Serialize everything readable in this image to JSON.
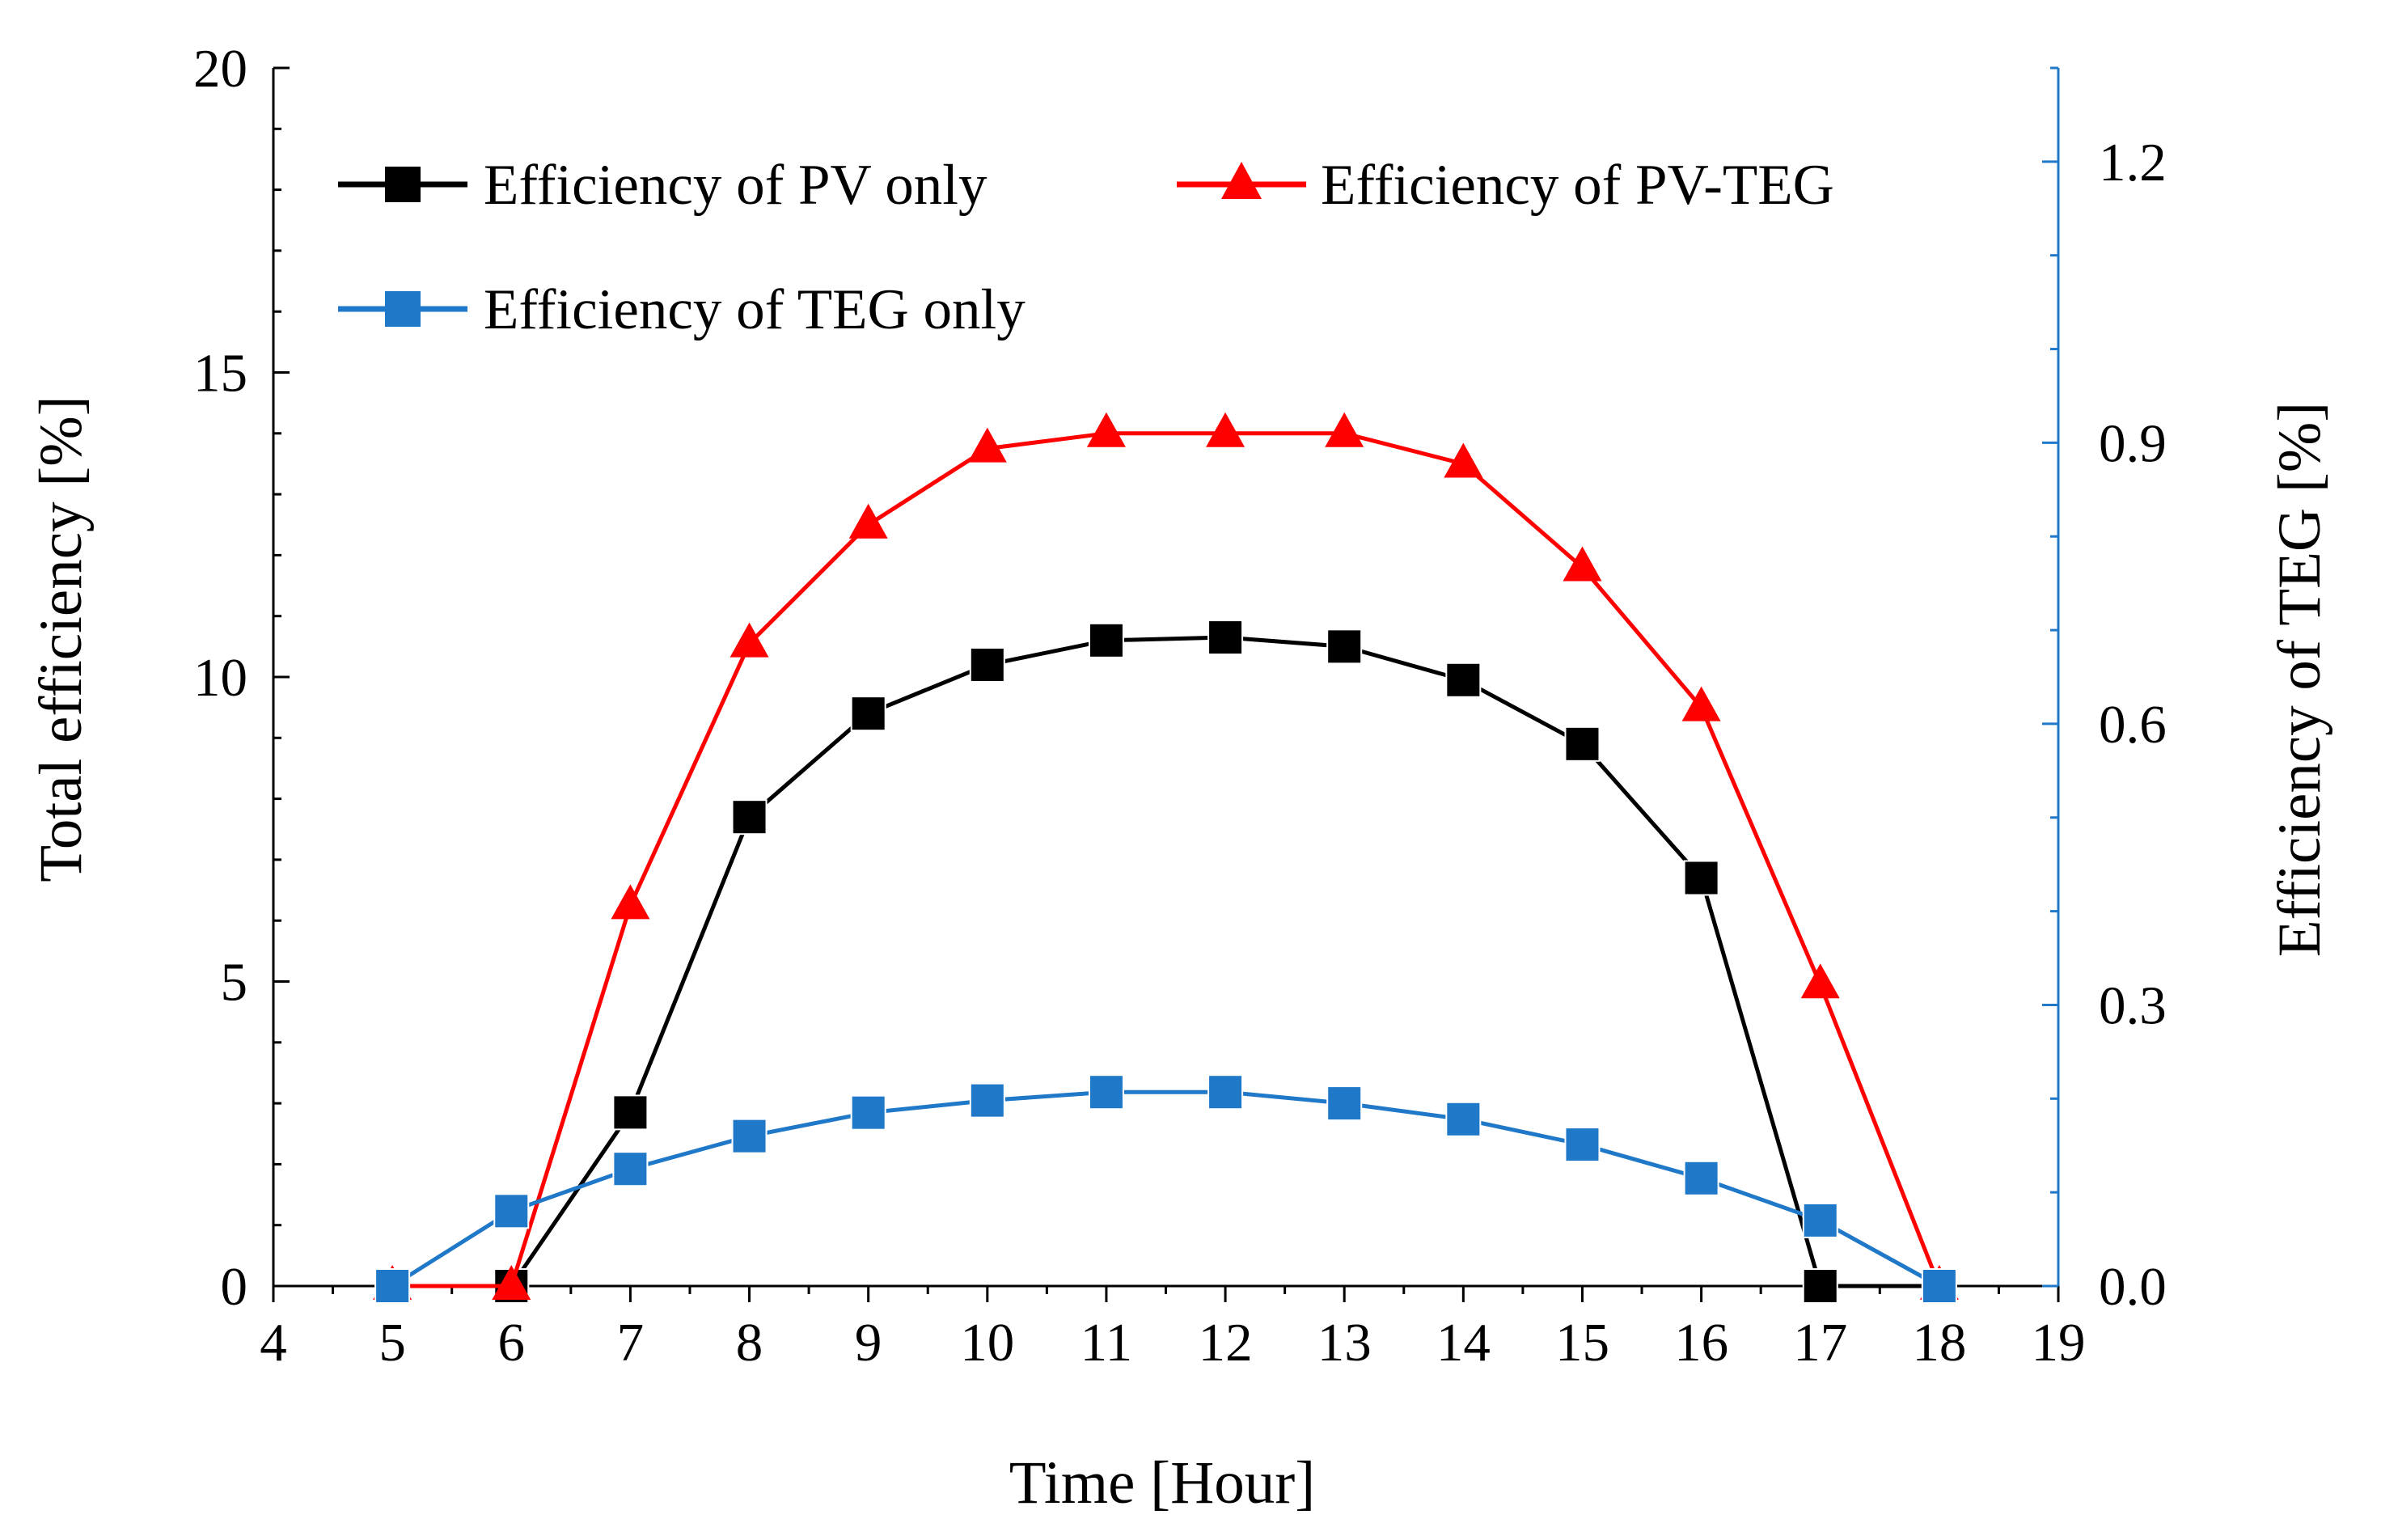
{
  "chart_data": {
    "type": "line",
    "title": "",
    "xlabel": "Time [Hour]",
    "ylabel": "Total efficiency [%]",
    "y2label": "Efficiency of TEG [%]",
    "xlim": [
      4,
      19
    ],
    "ylim": [
      0,
      20
    ],
    "y2lim": [
      0,
      1.3
    ],
    "x_ticks": [
      "4",
      "5",
      "6",
      "7",
      "8",
      "9",
      "10",
      "11",
      "12",
      "13",
      "14",
      "15",
      "16",
      "17",
      "18",
      "19"
    ],
    "y_ticks": [
      "0",
      "5",
      "10",
      "15",
      "20"
    ],
    "y2_ticks": [
      "0.0",
      "0.3",
      "0.6",
      "0.9",
      "1.2"
    ],
    "legend_position": "top-left",
    "series": [
      {
        "name": "Efficiency of PV only",
        "axis": "left",
        "color": "#000000",
        "marker": "square",
        "x": [
          5,
          6,
          7,
          8,
          9,
          10,
          11,
          12,
          13,
          14,
          15,
          16,
          17,
          18
        ],
        "values": [
          0,
          0,
          2.85,
          7.7,
          9.4,
          10.2,
          10.6,
          10.65,
          10.5,
          9.95,
          8.9,
          6.7,
          0,
          0
        ]
      },
      {
        "name": "Efficiency of PV-TEG",
        "axis": "left",
        "color": "#ff0000",
        "marker": "triangle",
        "x": [
          5,
          6,
          7,
          8,
          9,
          10,
          11,
          12,
          13,
          14,
          15,
          16,
          17,
          18
        ],
        "values": [
          0,
          0,
          6.25,
          10.55,
          12.5,
          13.75,
          14.0,
          14.0,
          14.0,
          13.5,
          11.8,
          9.5,
          4.95,
          0
        ]
      },
      {
        "name": "Efficiency of TEG only",
        "axis": "right",
        "color": "#1f78c8",
        "marker": "square",
        "x": [
          5,
          6,
          7,
          8,
          9,
          10,
          11,
          12,
          13,
          14,
          15,
          16,
          17,
          18
        ],
        "values": [
          0,
          0.08,
          0.125,
          0.16,
          0.185,
          0.198,
          0.207,
          0.207,
          0.195,
          0.178,
          0.151,
          0.115,
          0.07,
          0
        ]
      }
    ]
  }
}
